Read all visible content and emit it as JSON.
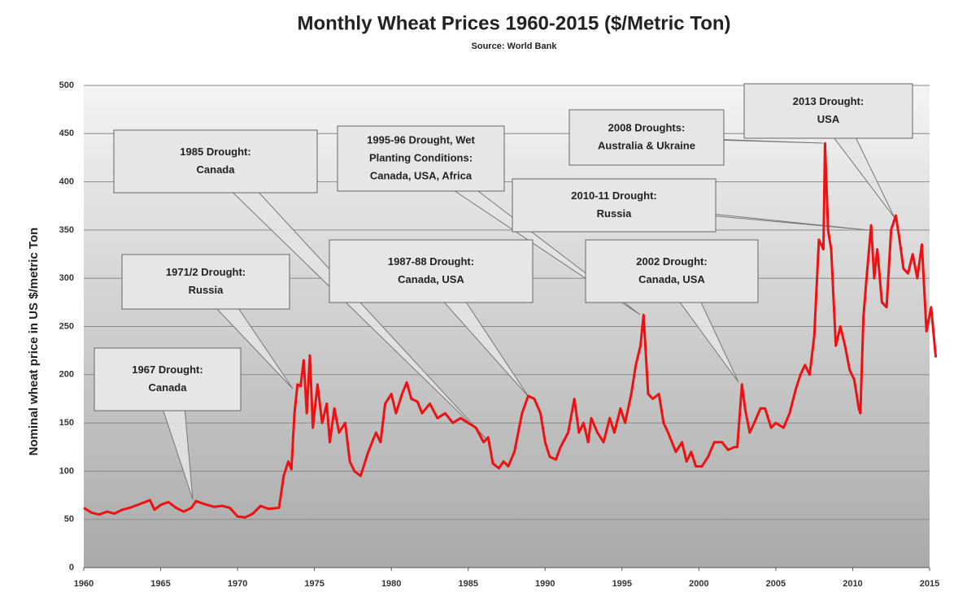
{
  "chart_data": {
    "type": "line",
    "title": "Monthly  Wheat Prices 1960-2015 ($/Metric Ton)",
    "subtitle": "Source: World Bank",
    "y_label": "Nominal wheat  price in US $/metric  Ton",
    "x": [
      1960,
      1960.5,
      1961,
      1961.5,
      1962,
      1962.5,
      1963,
      1963.5,
      1964,
      1964.3,
      1964.6,
      1965,
      1965.5,
      1966,
      1966.5,
      1967,
      1967.3,
      1967.8,
      1968.5,
      1969,
      1969.5,
      1970,
      1970.5,
      1971,
      1971.5,
      1972,
      1972.7,
      1973,
      1973.3,
      1973.5,
      1973.7,
      1973.9,
      1974.1,
      1974.3,
      1974.5,
      1974.7,
      1974.9,
      1975.2,
      1975.5,
      1975.8,
      1976,
      1976.3,
      1976.6,
      1977,
      1977.3,
      1977.6,
      1978,
      1978.5,
      1979,
      1979.3,
      1979.6,
      1980,
      1980.3,
      1980.7,
      1981,
      1981.3,
      1981.7,
      1982,
      1982.5,
      1983,
      1983.5,
      1984,
      1984.5,
      1985,
      1985.5,
      1986,
      1986.3,
      1986.6,
      1987,
      1987.3,
      1987.6,
      1988,
      1988.5,
      1988.9,
      1989.3,
      1989.7,
      1990,
      1990.3,
      1990.7,
      1991,
      1991.5,
      1991.9,
      1992.2,
      1992.5,
      1992.8,
      1993,
      1993.4,
      1993.8,
      1994.2,
      1994.5,
      1994.9,
      1995.2,
      1995.6,
      1995.9,
      1996.2,
      1996.4,
      1996.7,
      1997,
      1997.4,
      1997.7,
      1998,
      1998.5,
      1998.9,
      1999.2,
      1999.5,
      1999.8,
      2000.2,
      2000.6,
      2001,
      2001.5,
      2001.9,
      2002.3,
      2002.5,
      2002.8,
      2003,
      2003.3,
      2003.6,
      2004,
      2004.3,
      2004.7,
      2005,
      2005.5,
      2005.9,
      2006.3,
      2006.6,
      2006.9,
      2007.2,
      2007.5,
      2007.8,
      2008.1,
      2008.2,
      2008.4,
      2008.6,
      2008.9,
      2009.2,
      2009.5,
      2009.8,
      2010.1,
      2010.4,
      2010.5,
      2010.7,
      2010.9,
      2011.2,
      2011.4,
      2011.6,
      2011.9,
      2012.2,
      2012.5,
      2012.8,
      2013,
      2013.3,
      2013.6,
      2013.9,
      2014.2,
      2014.5,
      2014.8,
      2015.1,
      2015.4
    ],
    "series": [
      {
        "name": "Wheat price",
        "color": "#ee1111",
        "values": [
          62,
          57,
          55,
          58,
          56,
          60,
          62,
          65,
          68,
          70,
          60,
          65,
          68,
          62,
          58,
          62,
          69,
          66,
          63,
          64,
          62,
          53,
          52,
          56,
          64,
          61,
          62,
          95,
          110,
          102,
          160,
          190,
          188,
          215,
          160,
          220,
          145,
          190,
          150,
          170,
          130,
          165,
          140,
          150,
          110,
          100,
          95,
          120,
          140,
          130,
          170,
          180,
          160,
          180,
          192,
          175,
          172,
          160,
          170,
          155,
          160,
          150,
          155,
          150,
          145,
          130,
          135,
          108,
          103,
          110,
          105,
          120,
          160,
          178,
          175,
          160,
          130,
          115,
          112,
          125,
          140,
          175,
          140,
          150,
          130,
          155,
          140,
          130,
          155,
          140,
          165,
          150,
          180,
          210,
          230,
          262,
          180,
          175,
          180,
          150,
          140,
          120,
          130,
          110,
          120,
          105,
          105,
          115,
          130,
          130,
          122,
          125,
          125,
          190,
          165,
          140,
          150,
          165,
          165,
          145,
          150,
          145,
          160,
          185,
          200,
          210,
          200,
          240,
          340,
          330,
          440,
          350,
          330,
          230,
          250,
          230,
          205,
          195,
          165,
          160,
          260,
          300,
          355,
          300,
          330,
          275,
          270,
          350,
          365,
          345,
          310,
          305,
          325,
          300,
          335,
          245,
          270,
          218
        ]
      }
    ],
    "xlim": [
      1960,
      2015
    ],
    "ylim": [
      0,
      500
    ],
    "xticks": [
      1960,
      1965,
      1970,
      1975,
      1980,
      1985,
      1990,
      1995,
      2000,
      2005,
      2010,
      2015
    ],
    "yticks": [
      0,
      50,
      100,
      150,
      200,
      250,
      300,
      350,
      400,
      450,
      500
    ],
    "grid": true,
    "annotations": [
      {
        "lines": [
          "1967 Drought:",
          "Canada"
        ]
      },
      {
        "lines": [
          "1971/2  Drought:",
          "Russia"
        ]
      },
      {
        "lines": [
          "1985 Drought:",
          "Canada"
        ]
      },
      {
        "lines": [
          "1987-88 Drought:",
          "Canada, USA"
        ]
      },
      {
        "lines": [
          "1995-96 Drought, Wet",
          "Planting Conditions:",
          "Canada, USA, Africa"
        ]
      },
      {
        "lines": [
          "2002 Drought:",
          "Canada, USA"
        ]
      },
      {
        "lines": [
          "2008 Droughts:",
          "Australia & Ukraine"
        ]
      },
      {
        "lines": [
          "2010-11 Drought:",
          "Russia"
        ]
      },
      {
        "lines": [
          "2013 Drought:",
          "USA"
        ]
      }
    ]
  }
}
